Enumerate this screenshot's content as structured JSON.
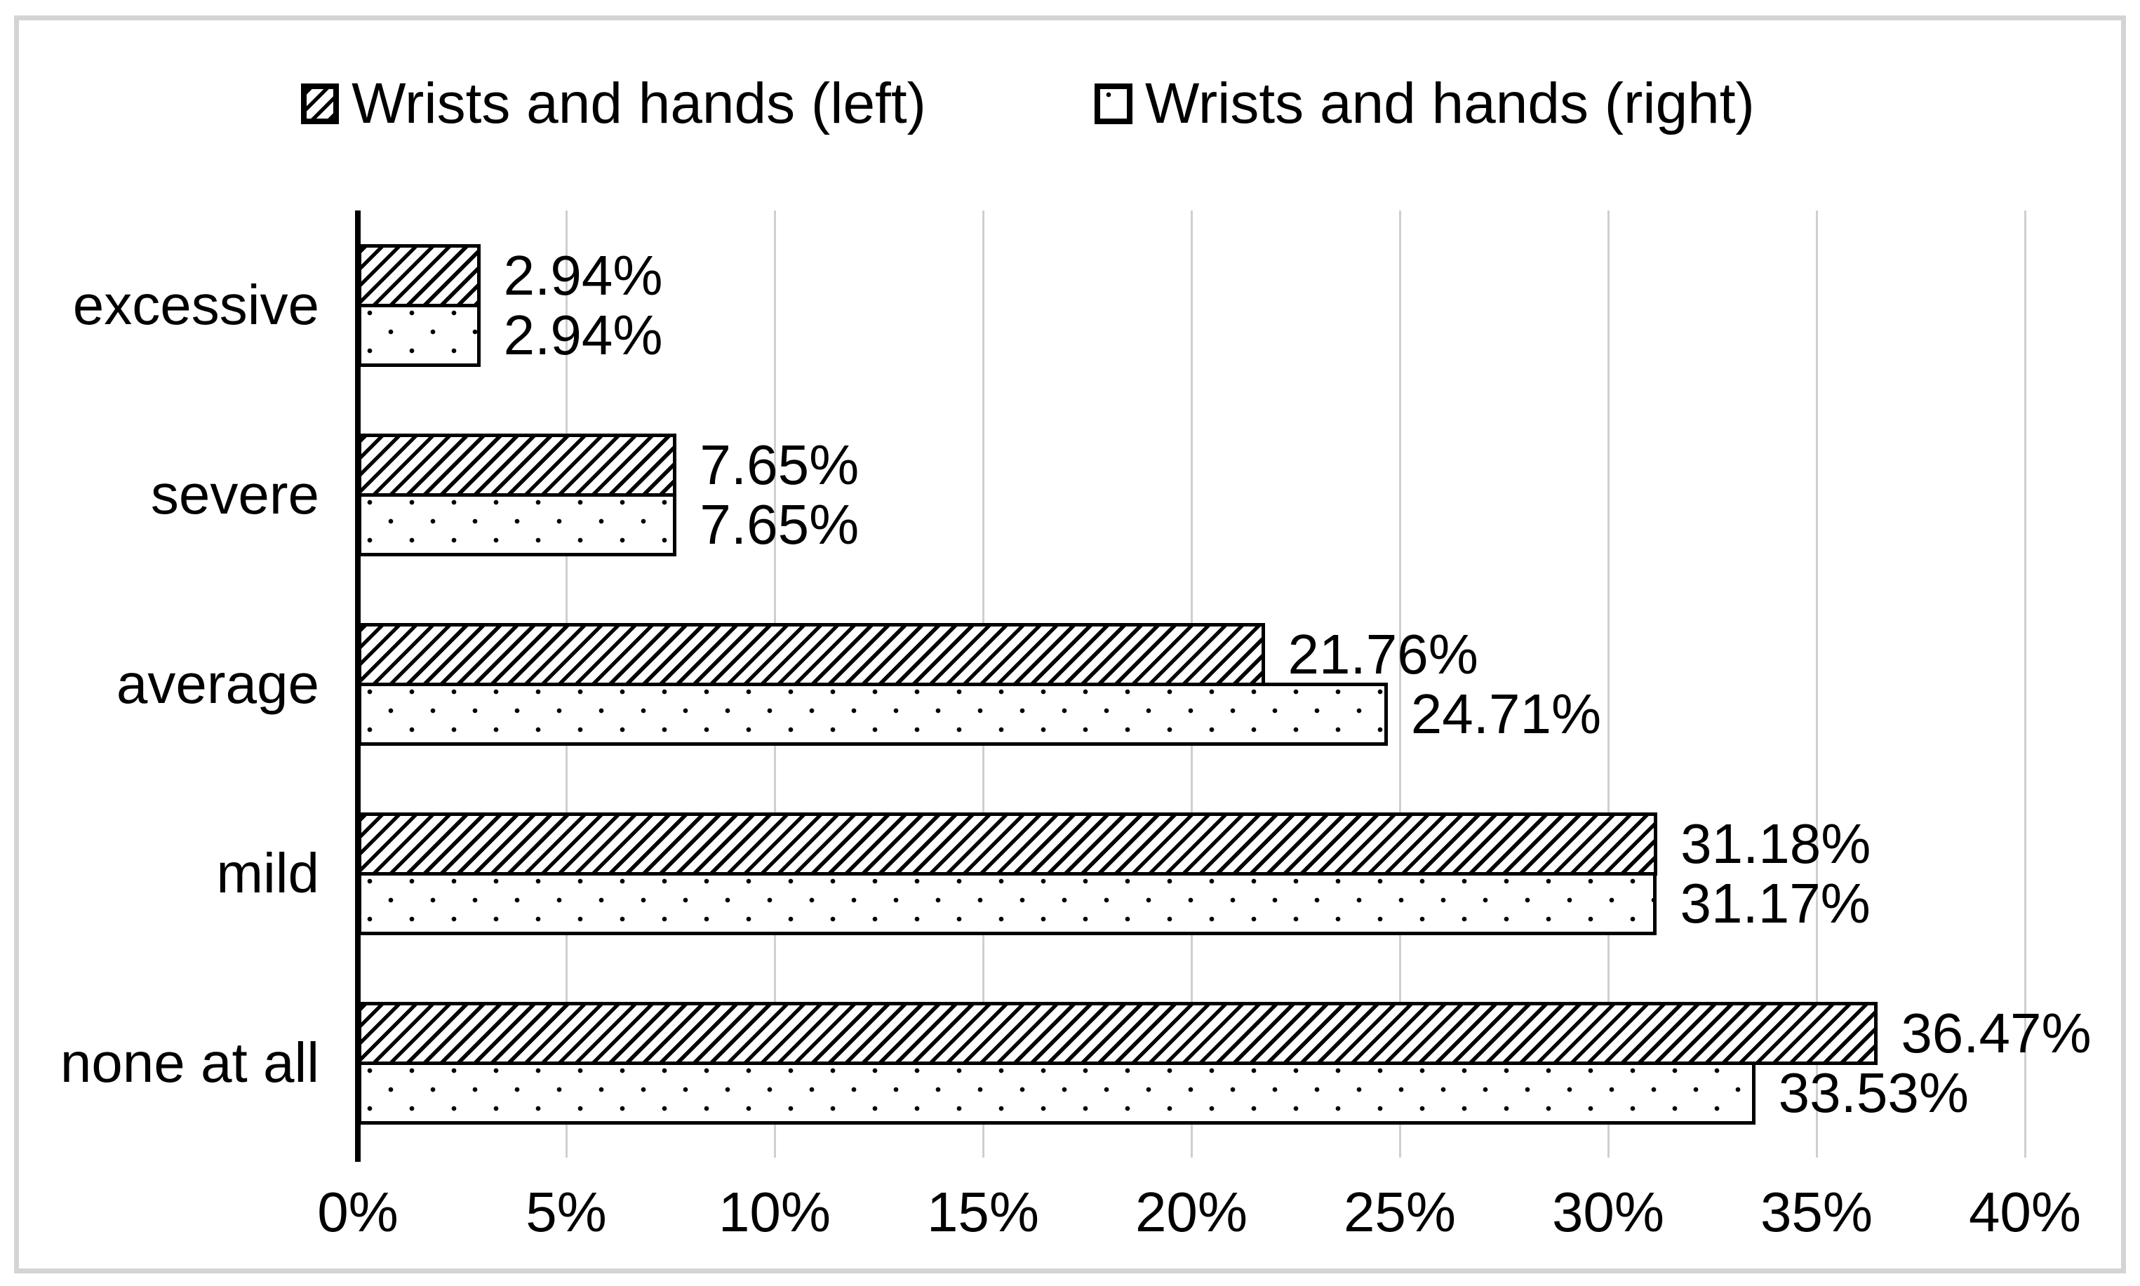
{
  "chart_data": {
    "type": "bar",
    "orientation": "horizontal",
    "title": "",
    "xlabel": "",
    "ylabel": "",
    "categories": [
      "excessive",
      "severe",
      "average",
      "mild",
      "none at all"
    ],
    "series": [
      {
        "name": "Wrists and hands (left)",
        "pattern": "diagonal-hatch",
        "values": [
          2.94,
          7.65,
          21.76,
          31.18,
          36.47
        ],
        "labels": [
          "2.94%",
          "7.65%",
          "21.76%",
          "31.18%",
          "36.47%"
        ]
      },
      {
        "name": "Wrists and hands (right)",
        "pattern": "dotted",
        "values": [
          2.94,
          7.65,
          24.71,
          31.17,
          33.53
        ],
        "labels": [
          "2.94%",
          "7.65%",
          "24.71%",
          "31.17%",
          "33.53%"
        ]
      }
    ],
    "x_axis": {
      "min": 0,
      "max": 40,
      "tick_step": 5,
      "tick_labels": [
        "0%",
        "5%",
        "10%",
        "15%",
        "20%",
        "25%",
        "30%",
        "35%",
        "40%"
      ]
    },
    "grid": true,
    "legend_position": "top-center",
    "colors": {
      "foreground": "#000000",
      "background": "#ffffff",
      "gridline": "#cdd0d2",
      "frame_border": "#d2d4d6"
    }
  }
}
